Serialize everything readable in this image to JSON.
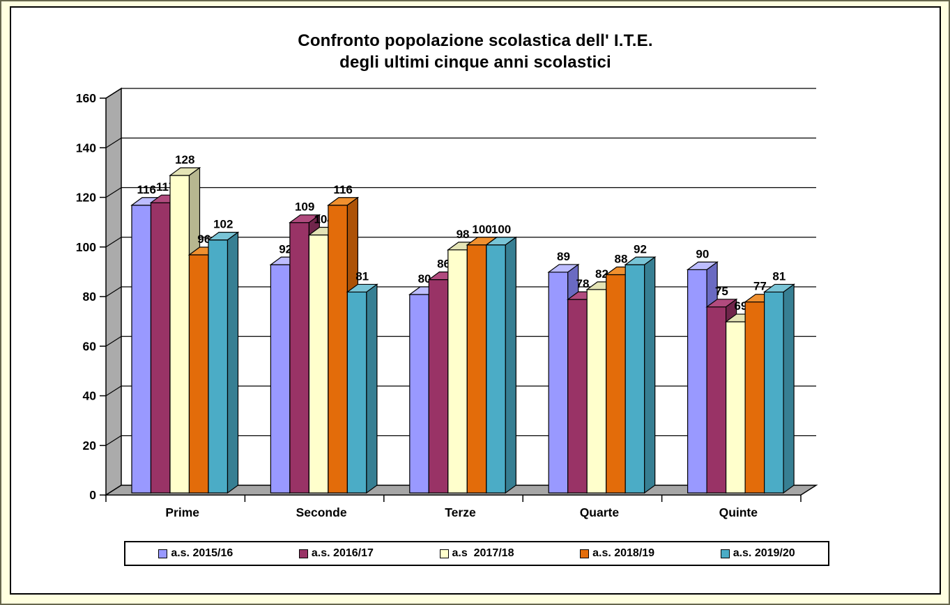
{
  "page": {
    "background": "#FFFFE0",
    "outer_border_color": "#66664D",
    "chart_area_border_color": "#000000"
  },
  "chart_data": {
    "type": "bar",
    "variant": "3d-clustered",
    "title_line1": "Confronto popolazione scolastica dell' I.T.E.",
    "title_line2": "degli ultimi cinque anni scolastici",
    "categories": [
      "Prime",
      "Seconde",
      "Terze",
      "Quarte",
      "Quinte"
    ],
    "series": [
      {
        "name": "a.s. 2015/16",
        "values": [
          116,
          92,
          80,
          89,
          90
        ],
        "color": "#9999FF",
        "color_top": "#BDBDFF",
        "color_side": "#6A6AC2"
      },
      {
        "name": "a.s. 2016/17",
        "values": [
          117,
          109,
          86,
          78,
          75
        ],
        "color": "#993366",
        "color_top": "#B14B7E",
        "color_side": "#70254B"
      },
      {
        "name": "a.s  2017/18",
        "values": [
          128,
          104,
          98,
          82,
          69
        ],
        "color": "#FFFFCC",
        "color_top": "#E4E4B6",
        "color_side": "#B7B790"
      },
      {
        "name": "a.s. 2018/19",
        "values": [
          96,
          116,
          100,
          88,
          77
        ],
        "color": "#E36C0A",
        "color_top": "#F0902F",
        "color_side": "#AD5207"
      },
      {
        "name": "a.s. 2019/20",
        "values": [
          102,
          81,
          100,
          92,
          81
        ],
        "color": "#4BACC6",
        "color_top": "#79C4D6",
        "color_side": "#377F93"
      }
    ],
    "ylim": [
      0,
      160
    ],
    "ytick_step": 20,
    "ytick_labels": [
      "0",
      "20",
      "40",
      "60",
      "80",
      "100",
      "120",
      "140",
      "160"
    ],
    "grid": true,
    "show_data_labels": true,
    "legend_position": "bottom",
    "wall_color": "#ABABAB",
    "floor_color": "#A6A6A6",
    "gridline_color": "#000000"
  }
}
